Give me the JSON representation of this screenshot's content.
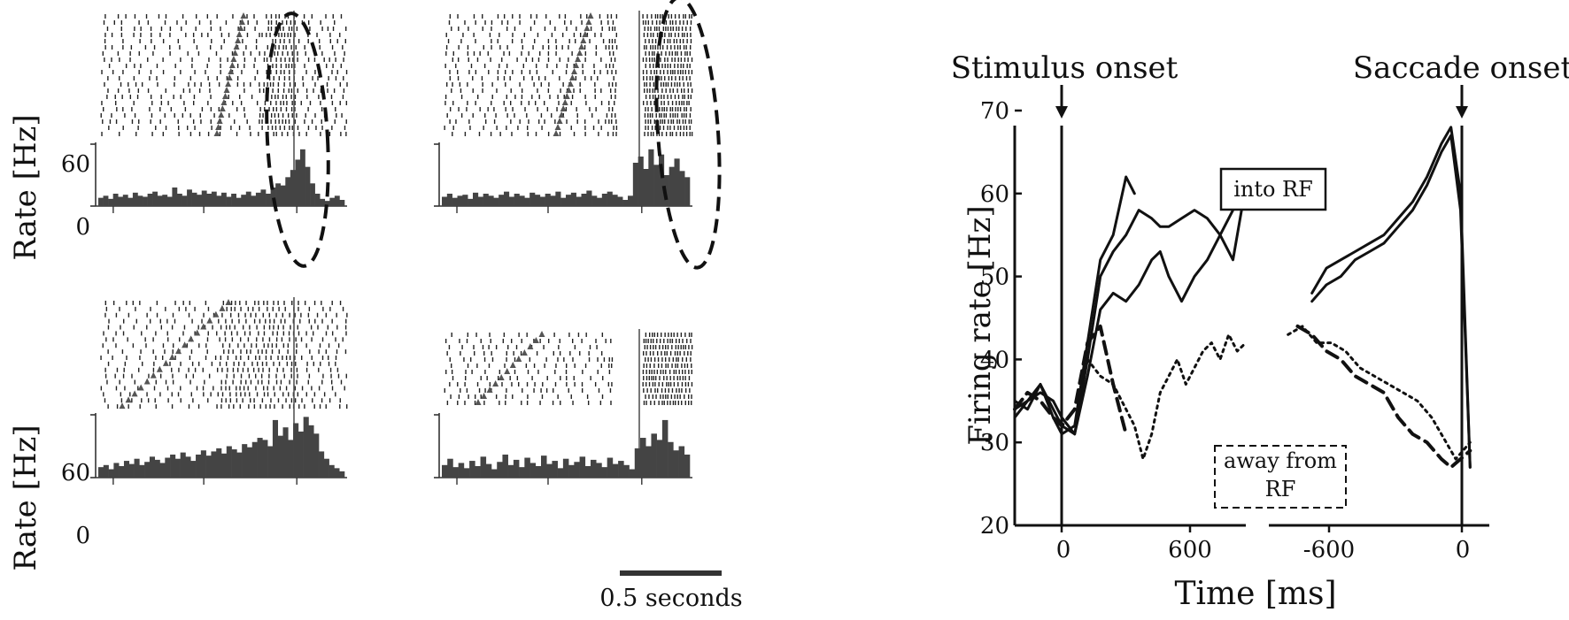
{
  "rasters": {
    "ylabel": "Rate [Hz]",
    "y_ticks": [
      "60",
      "0"
    ],
    "scale_bar_label": "0.5 seconds",
    "chart_data": [
      {
        "type": "bar",
        "panel": "top-left",
        "ylim": [
          0,
          60
        ],
        "values": [
          8,
          10,
          7,
          12,
          9,
          11,
          8,
          13,
          10,
          9,
          12,
          14,
          10,
          11,
          9,
          18,
          12,
          10,
          16,
          13,
          11,
          15,
          12,
          14,
          10,
          13,
          9,
          12,
          8,
          11,
          14,
          10,
          13,
          16,
          12,
          18,
          22,
          20,
          28,
          35,
          45,
          55,
          38,
          22,
          12,
          7,
          5,
          8,
          10,
          6
        ]
      },
      {
        "type": "bar",
        "panel": "top-right",
        "ylim": [
          0,
          60
        ],
        "values": [
          9,
          12,
          8,
          10,
          11,
          7,
          13,
          9,
          12,
          10,
          8,
          11,
          14,
          9,
          12,
          10,
          8,
          13,
          11,
          9,
          12,
          10,
          14,
          8,
          11,
          13,
          9,
          12,
          15,
          10,
          8,
          12,
          14,
          11,
          9,
          6,
          10,
          42,
          48,
          36,
          55,
          40,
          50,
          30,
          38,
          46,
          34,
          28
        ]
      },
      {
        "type": "bar",
        "panel": "bottom-left",
        "ylim": [
          0,
          60
        ],
        "values": [
          10,
          12,
          8,
          14,
          11,
          16,
          13,
          18,
          12,
          15,
          20,
          17,
          14,
          19,
          22,
          18,
          24,
          20,
          16,
          22,
          26,
          21,
          25,
          28,
          23,
          30,
          27,
          24,
          32,
          29,
          34,
          38,
          36,
          30,
          55,
          40,
          48,
          36,
          52,
          44,
          58,
          50,
          42,
          25,
          18,
          12,
          9,
          6
        ]
      },
      {
        "type": "bar",
        "panel": "bottom-right",
        "ylim": [
          0,
          60
        ],
        "values": [
          12,
          18,
          10,
          14,
          9,
          16,
          11,
          20,
          13,
          8,
          15,
          22,
          12,
          17,
          10,
          19,
          14,
          11,
          21,
          13,
          16,
          9,
          18,
          12,
          15,
          20,
          11,
          17,
          14,
          10,
          19,
          13,
          16,
          12,
          8,
          28,
          38,
          30,
          42,
          36,
          55,
          34,
          26,
          30,
          22
        ]
      }
    ]
  },
  "rates": {
    "stim_title": "Stimulus onset",
    "sacc_title": "Saccade onset",
    "ylabel": "Firing rate [Hz]",
    "xlabel": "Time [ms]",
    "legend_into": "into RF",
    "legend_away_1": "away from",
    "legend_away_2": "RF",
    "y_ticks": [
      "70",
      "60",
      "50",
      "40",
      "30",
      "20"
    ],
    "x_ticks_stim": [
      "0",
      "600"
    ],
    "x_ticks_sacc": [
      "-600",
      "0"
    ],
    "chart_data": {
      "type": "line",
      "ylim": [
        20,
        70
      ],
      "stim_xlim": [
        -30,
        240
      ],
      "sacc_xlim": [
        -190,
        40
      ],
      "stimulus_aligned": [
        {
          "style": "solid",
          "x": [
            -30,
            -15,
            0,
            15,
            25,
            40,
            55,
            70,
            85,
            100,
            115,
            130,
            140,
            150,
            165,
            180,
            195,
            210,
            225,
            235
          ],
          "y": [
            34,
            35,
            36,
            35,
            33,
            31,
            40,
            50,
            53,
            55,
            58,
            57,
            56,
            56,
            57,
            58,
            57,
            55,
            58,
            62
          ]
        },
        {
          "style": "solid",
          "x": [
            -30,
            -15,
            0,
            15,
            25,
            40,
            55,
            70,
            85,
            100,
            115,
            130,
            140,
            150,
            165,
            180,
            195,
            210,
            225,
            235
          ],
          "y": [
            33,
            35,
            37,
            34,
            32,
            31,
            38,
            46,
            48,
            47,
            49,
            52,
            53,
            50,
            47,
            50,
            52,
            55,
            52,
            58
          ]
        },
        {
          "style": "solid",
          "x": [
            -30,
            -15,
            0,
            15,
            25,
            40,
            55,
            70,
            85,
            100,
            110
          ],
          "y": [
            35,
            34,
            37,
            33,
            31,
            32,
            42,
            52,
            55,
            62,
            60
          ]
        },
        {
          "style": "dashed",
          "x": [
            -30,
            -15,
            0,
            15,
            25,
            40,
            55,
            70,
            85,
            100
          ],
          "y": [
            34,
            36,
            35,
            33,
            32,
            34,
            42,
            44,
            37,
            31
          ]
        },
        {
          "style": "dotted",
          "x": [
            55,
            70,
            85,
            100,
            110,
            120,
            130,
            140,
            150,
            160,
            170,
            180,
            190,
            200,
            210,
            220,
            230,
            240
          ],
          "y": [
            40,
            38,
            37,
            34,
            32,
            28,
            31,
            36,
            38,
            40,
            37,
            39,
            41,
            42,
            40,
            43,
            41,
            42
          ]
        }
      ],
      "saccade_aligned": [
        {
          "style": "solid",
          "x": [
            -145,
            -130,
            -115,
            -100,
            -85,
            -70,
            -55,
            -40,
            -25,
            -10,
            0,
            10,
            20
          ],
          "y": [
            48,
            51,
            52,
            53,
            54,
            55,
            57,
            59,
            62,
            66,
            68,
            60,
            27
          ]
        },
        {
          "style": "solid",
          "x": [
            -145,
            -130,
            -115,
            -100,
            -85,
            -70,
            -55,
            -40,
            -25,
            -10,
            0,
            10,
            20
          ],
          "y": [
            47,
            49,
            50,
            52,
            53,
            54,
            56,
            58,
            61,
            65,
            67,
            58,
            27
          ]
        },
        {
          "style": "dashed",
          "x": [
            -160,
            -145,
            -130,
            -115,
            -100,
            -85,
            -70,
            -55,
            -40,
            -25,
            -10,
            0,
            10,
            20
          ],
          "y": [
            44,
            43,
            41,
            40,
            38,
            37,
            36,
            33,
            31,
            30,
            28,
            27,
            28,
            29
          ]
        },
        {
          "style": "dotted",
          "x": [
            -170,
            -155,
            -140,
            -125,
            -110,
            -95,
            -80,
            -65,
            -50,
            -35,
            -20,
            -5,
            5,
            20
          ],
          "y": [
            43,
            44,
            42,
            42,
            41,
            39,
            38,
            37,
            36,
            35,
            33,
            30,
            28,
            30
          ]
        }
      ]
    }
  }
}
